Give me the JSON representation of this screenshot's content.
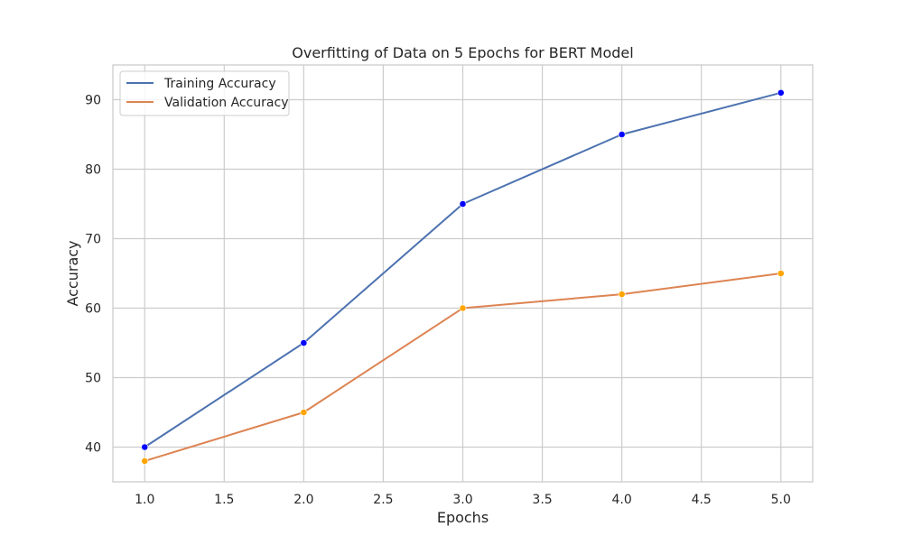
{
  "chart_data": {
    "type": "line",
    "title": "Overfitting of Data on 5 Epochs for BERT Model",
    "xlabel": "Epochs",
    "ylabel": "Accuracy",
    "xlim": [
      0.8,
      5.2
    ],
    "ylim": [
      35,
      95
    ],
    "xticks": [
      1.0,
      1.5,
      2.0,
      2.5,
      3.0,
      3.5,
      4.0,
      4.5,
      5.0
    ],
    "xtick_labels": [
      "1.0",
      "1.5",
      "2.0",
      "2.5",
      "3.0",
      "3.5",
      "4.0",
      "4.5",
      "5.0"
    ],
    "yticks": [
      40,
      50,
      60,
      70,
      80,
      90
    ],
    "ytick_labels": [
      "40",
      "50",
      "60",
      "70",
      "80",
      "90"
    ],
    "grid": true,
    "legend_position": "top-left",
    "x": [
      1,
      2,
      3,
      4,
      5
    ],
    "series": [
      {
        "name": "Training Accuracy",
        "values": [
          40,
          55,
          75,
          85,
          91
        ],
        "line_color": "#4c72b0",
        "marker_color": "#0000ff"
      },
      {
        "name": "Validation Accuracy",
        "values": [
          38,
          45,
          60,
          62,
          65
        ],
        "line_color": "#dd8452",
        "marker_color": "#ffa500"
      }
    ],
    "colors": {
      "grid": "#cccccc",
      "frame": "#cccccc",
      "text": "#262626",
      "background": "#ffffff"
    }
  }
}
